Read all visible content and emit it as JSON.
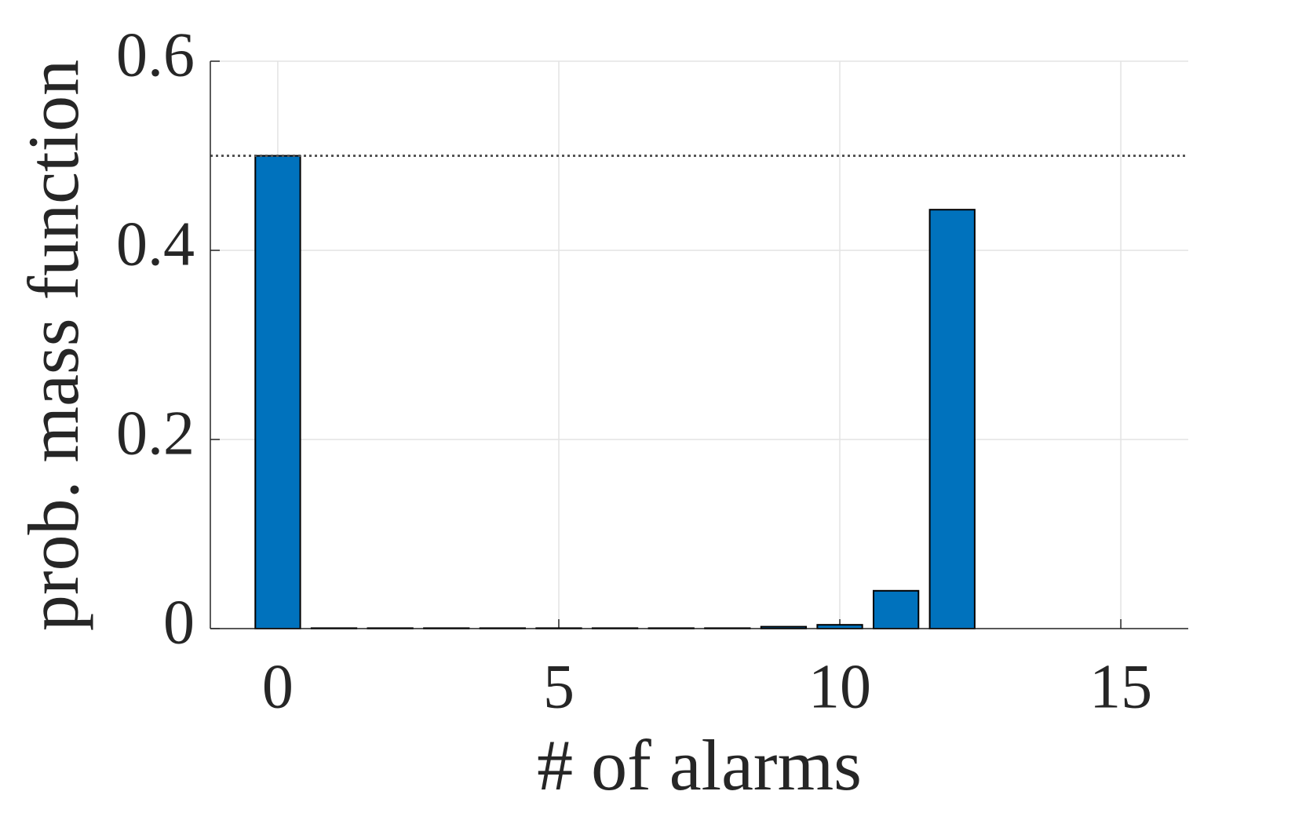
{
  "chart_data": {
    "type": "bar",
    "xlabel": "# of alarms",
    "ylabel": "prob. mass function",
    "x": [
      0,
      1,
      2,
      3,
      4,
      5,
      6,
      7,
      8,
      9,
      10,
      11,
      12,
      13,
      14,
      15
    ],
    "values": [
      0.5,
      0.0005,
      0.0005,
      0.0005,
      0.0005,
      0.0005,
      0.0005,
      0.0005,
      0.0005,
      0.002,
      0.004,
      0.04,
      0.443,
      0,
      0,
      0
    ],
    "color": "#0072bd",
    "xlim": [
      -1.2,
      16.2
    ],
    "xticks": [
      0,
      5,
      10,
      15
    ],
    "ylim": [
      0,
      0.6
    ],
    "yticks": [
      0,
      0.2,
      0.4,
      0.6
    ],
    "hline": 0.5,
    "grid": true
  }
}
